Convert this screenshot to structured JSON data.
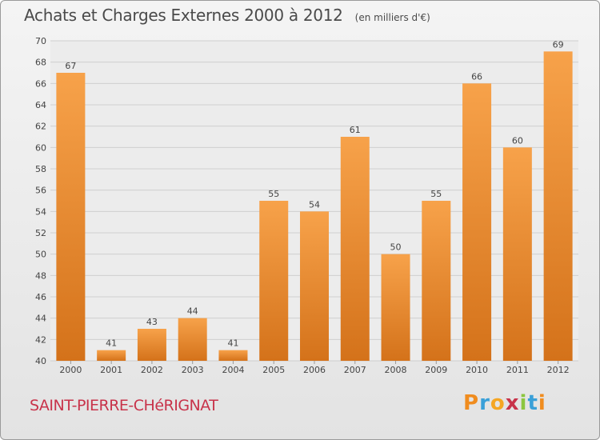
{
  "header": {
    "title": "Achats et Charges Externes 2000 à 2012",
    "subtitle": "(en milliers d'€)"
  },
  "footer": {
    "commune": "SAINT-PIERRE-CHéRIGNAT"
  },
  "logo": {
    "letters": [
      "P",
      "r",
      "o",
      "x",
      "i",
      "t",
      "i"
    ],
    "colors": [
      "#f08c1e",
      "#3aa0d8",
      "#f5a623",
      "#c8334a",
      "#8cc63f",
      "#3aa0d8",
      "#f08c1e"
    ]
  },
  "colors": {
    "bar_light": "#f7a24a",
    "bar_dark": "#d4721a",
    "grid": "#cfcfcf",
    "axis_text": "#444444"
  },
  "chart_data": {
    "type": "bar",
    "categories": [
      "2000",
      "2001",
      "2002",
      "2003",
      "2004",
      "2005",
      "2006",
      "2007",
      "2008",
      "2009",
      "2010",
      "2011",
      "2012"
    ],
    "values": [
      67,
      41,
      43,
      44,
      41,
      55,
      54,
      61,
      50,
      55,
      66,
      60,
      69
    ],
    "title": "Achats et Charges Externes 2000 à 2012",
    "ylim": [
      40,
      70
    ],
    "yticks": [
      40,
      42,
      44,
      46,
      48,
      50,
      52,
      54,
      56,
      58,
      60,
      62,
      64,
      66,
      68,
      70
    ],
    "grid": true
  }
}
